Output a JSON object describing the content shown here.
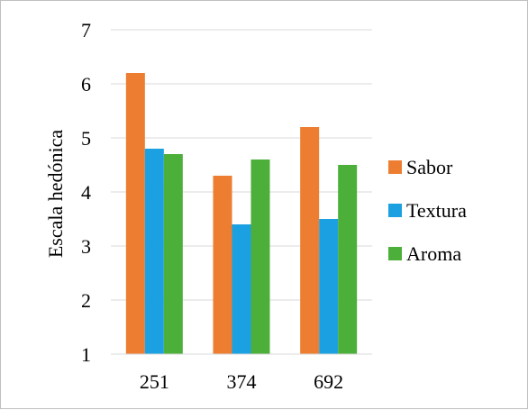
{
  "chart_data": {
    "type": "bar",
    "title": "",
    "xlabel": "",
    "ylabel": "Escala hedónica",
    "categories": [
      "251",
      "374",
      "692"
    ],
    "series": [
      {
        "name": "Sabor",
        "color": "#ED7D31",
        "values": [
          6.2,
          4.3,
          5.2
        ]
      },
      {
        "name": "Textura",
        "color": "#1BA1E2",
        "values": [
          4.8,
          3.4,
          3.5
        ]
      },
      {
        "name": "Aroma",
        "color": "#4CAF3A",
        "values": [
          4.7,
          4.6,
          4.5
        ]
      }
    ],
    "ylim": [
      1,
      7
    ],
    "yticks": [
      1,
      2,
      3,
      4,
      5,
      6,
      7
    ],
    "grid": true,
    "legend_position": "right"
  }
}
